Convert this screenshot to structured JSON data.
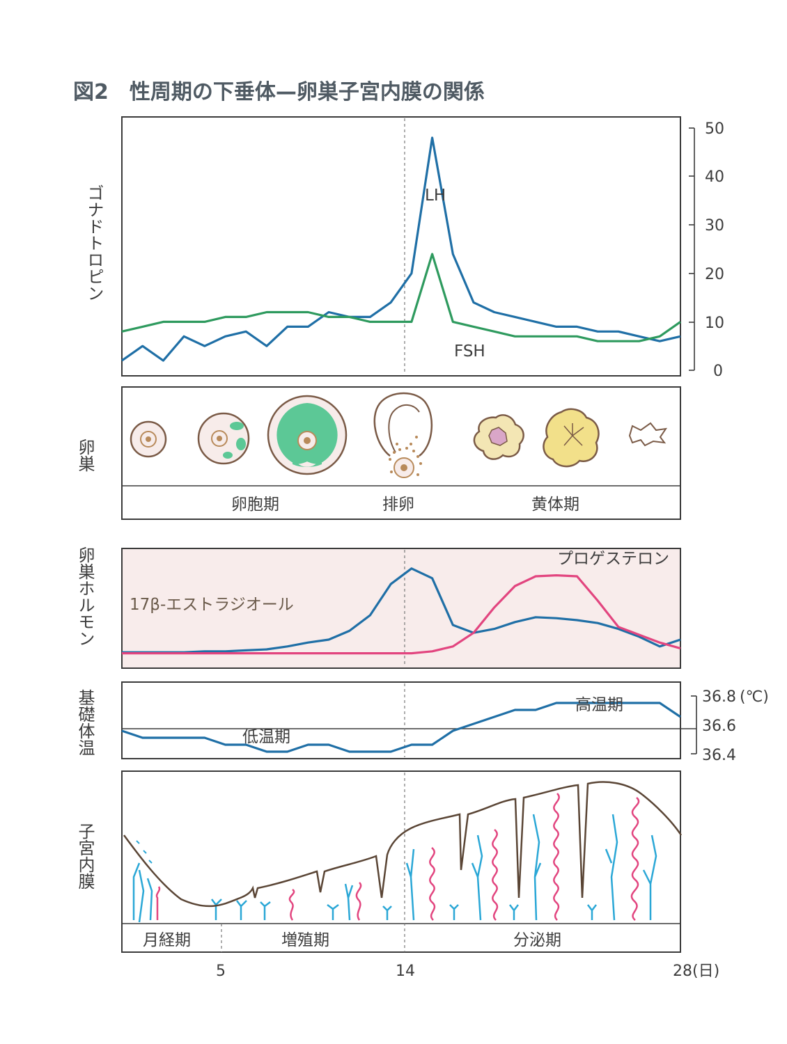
{
  "title": "図2　性周期の下垂体—卵巣子宮内膜の関係",
  "colors": {
    "blue": "#1f6fa6",
    "green": "#2e9a5e",
    "pink": "#e2457f",
    "brown": "#5a4535",
    "follicle_green": "#5cc896",
    "corpus_yellow": "#f2e08a",
    "hormone_bg": "#f8eceb",
    "endometrium_blue": "#2aa7d6"
  },
  "gonadotropin": {
    "label": "ゴナドトロピン",
    "y_ticks": [
      "50",
      "40",
      "30",
      "20",
      "10",
      "0"
    ],
    "lh_label": "LH",
    "fsh_label": "FSH"
  },
  "ovary": {
    "label": "卵巣",
    "phases": [
      "卵胞期",
      "排卵",
      "黄体期"
    ],
    "stage_icons": [
      "primary-follicle-icon",
      "secondary-follicle-icon",
      "graafian-follicle-icon",
      "ovulation-icon",
      "corpus-luteum-icon",
      "mature-corpus-luteum-icon",
      "corpus-albicans-icon"
    ]
  },
  "hormones": {
    "label": "卵巣ホルモン",
    "estradiol_label": "17β-エストラジオール",
    "progesterone_label": "プロゲステロン"
  },
  "bbt": {
    "label": "基礎体温",
    "y_ticks": [
      "36.8",
      "36.6",
      "36.4"
    ],
    "unit": "(℃)",
    "low_label": "低温期",
    "high_label": "高温期"
  },
  "endometrium": {
    "label": "子宮内膜",
    "phases": [
      "月経期",
      "増殖期",
      "分泌期"
    ]
  },
  "x_axis": {
    "ticks": [
      "5",
      "14",
      "28"
    ],
    "unit": "(日)"
  },
  "chart_data": [
    {
      "type": "line",
      "name": "gonadotropin",
      "x": [
        1,
        2,
        3,
        4,
        5,
        6,
        7,
        8,
        9,
        10,
        11,
        12,
        13,
        14,
        15,
        16,
        17,
        18,
        19,
        20,
        21,
        22,
        23,
        24,
        25,
        26,
        27,
        28
      ],
      "ylim": [
        0,
        50
      ],
      "series": [
        {
          "name": "LH",
          "values": [
            2,
            5,
            2,
            7,
            5,
            7,
            8,
            5,
            9,
            9,
            12,
            11,
            11,
            14,
            20,
            48,
            24,
            14,
            12,
            11,
            10,
            9,
            9,
            8,
            8,
            7,
            6,
            7
          ]
        },
        {
          "name": "FSH",
          "values": [
            8,
            9,
            10,
            10,
            10,
            11,
            11,
            12,
            12,
            12,
            11,
            11,
            10,
            10,
            10,
            24,
            10,
            9,
            8,
            7,
            7,
            7,
            7,
            6,
            6,
            6,
            7,
            10
          ]
        }
      ]
    },
    {
      "type": "line",
      "name": "ovarian-hormones",
      "x": [
        1,
        2,
        3,
        4,
        5,
        6,
        7,
        8,
        9,
        10,
        11,
        12,
        13,
        14,
        15,
        16,
        17,
        18,
        19,
        20,
        21,
        22,
        23,
        24,
        25,
        26,
        27,
        28
      ],
      "ylim": [
        0,
        100
      ],
      "series": [
        {
          "name": "17β-エストラジオール",
          "values": [
            2,
            2,
            2,
            2,
            3,
            3,
            4,
            5,
            8,
            12,
            15,
            24,
            40,
            72,
            88,
            78,
            30,
            22,
            26,
            33,
            38,
            37,
            35,
            32,
            26,
            18,
            8,
            15
          ]
        },
        {
          "name": "プロゲステロン",
          "values": [
            1,
            1,
            1,
            1,
            1,
            1,
            1,
            1,
            1,
            1,
            1,
            1,
            1,
            1,
            1,
            3,
            8,
            22,
            48,
            70,
            80,
            81,
            80,
            55,
            28,
            20,
            12,
            6
          ]
        }
      ]
    },
    {
      "type": "line",
      "name": "basal-body-temperature",
      "x": [
        1,
        2,
        3,
        4,
        5,
        6,
        7,
        8,
        9,
        10,
        11,
        12,
        13,
        14,
        15,
        16,
        17,
        18,
        19,
        20,
        21,
        22,
        23,
        24,
        25,
        26,
        27,
        28
      ],
      "ylim": [
        36.35,
        36.9
      ],
      "series": [
        {
          "name": "基礎体温",
          "values": [
            36.6,
            36.55,
            36.55,
            36.55,
            36.55,
            36.5,
            36.5,
            36.45,
            36.45,
            36.5,
            36.5,
            36.45,
            36.45,
            36.45,
            36.5,
            36.5,
            36.6,
            36.65,
            36.7,
            36.75,
            36.75,
            36.8,
            36.8,
            36.8,
            36.8,
            36.8,
            36.8,
            36.7
          ]
        }
      ]
    }
  ]
}
